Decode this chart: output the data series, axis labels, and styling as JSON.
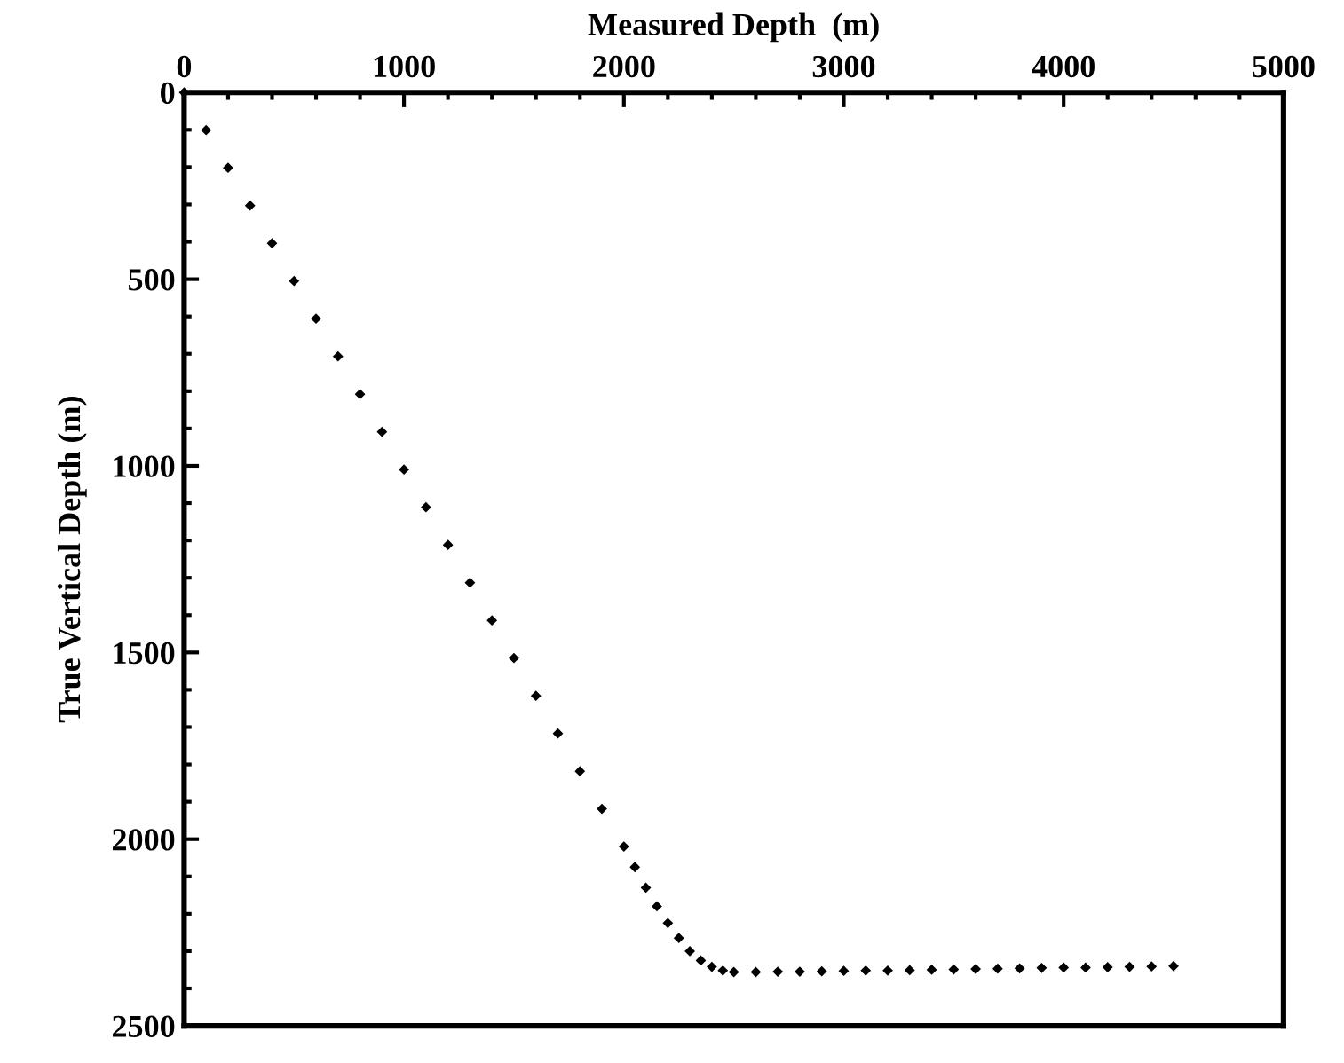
{
  "chart_data": {
    "type": "scatter",
    "xlabel": "Measured Depth  (m)",
    "ylabel": "True Vertical Depth (m)",
    "x": [
      0,
      100,
      200,
      300,
      400,
      500,
      600,
      700,
      800,
      900,
      1000,
      1100,
      1200,
      1300,
      1400,
      1500,
      1600,
      1700,
      1800,
      1900,
      2000,
      2050,
      2100,
      2150,
      2200,
      2250,
      2300,
      2350,
      2400,
      2450,
      2500,
      2600,
      2700,
      2800,
      2900,
      3000,
      3100,
      3200,
      3300,
      3400,
      3500,
      3600,
      3700,
      3800,
      3900,
      4000,
      4100,
      4200,
      4300,
      4400,
      4500
    ],
    "series": [
      {
        "color": "#000000",
        "values": [
          0,
          101,
          202,
          303,
          404,
          505,
          606,
          707,
          808,
          909,
          1010,
          1111,
          1212,
          1313,
          1414,
          1515,
          1616,
          1717,
          1818,
          1919,
          2020,
          2075,
          2130,
          2180,
          2225,
          2265,
          2300,
          2325,
          2342,
          2352,
          2356,
          2356,
          2355,
          2355,
          2354,
          2353,
          2352,
          2352,
          2351,
          2350,
          2349,
          2348,
          2347,
          2346,
          2345,
          2344,
          2344,
          2343,
          2342,
          2341,
          2340
        ]
      }
    ],
    "xlim": [
      0,
      5000
    ],
    "xticks": [
      0,
      1000,
      2000,
      3000,
      4000,
      5000
    ],
    "ylim": [
      2500,
      0
    ],
    "yticks": [
      0,
      500,
      1000,
      1500,
      2000,
      2500
    ],
    "marker": "diamond",
    "grid": false,
    "legend": false
  }
}
